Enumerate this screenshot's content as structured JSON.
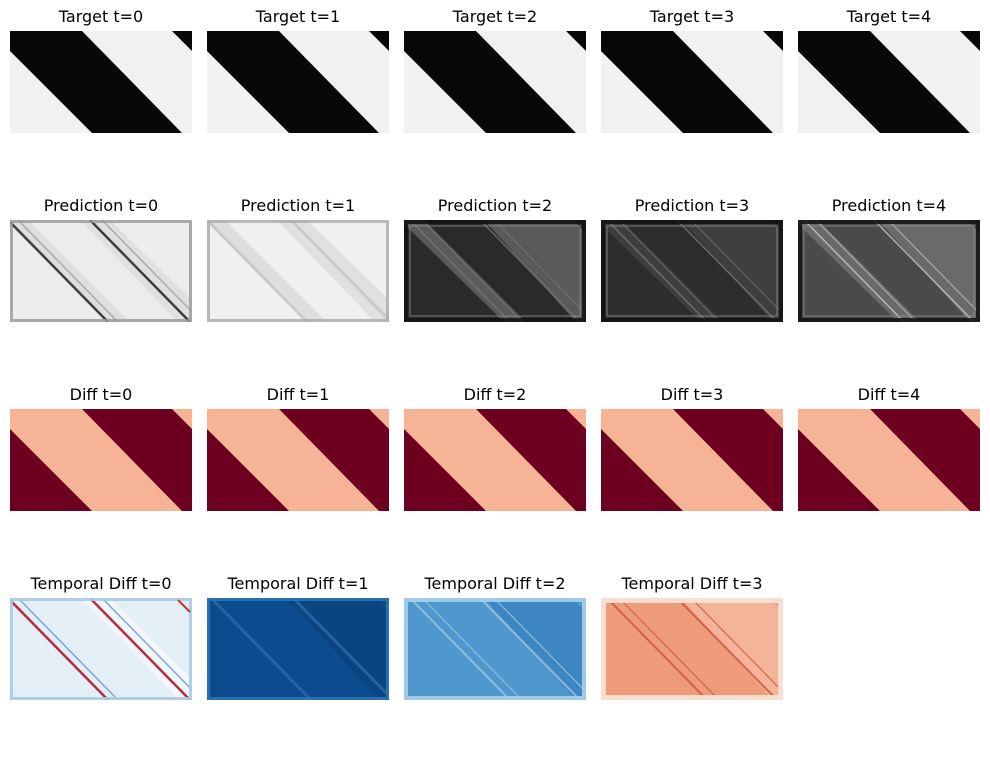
{
  "rows": [
    {
      "kind": "target",
      "panels": [
        {
          "title": "Target t=0",
          "t": 0
        },
        {
          "title": "Target t=1",
          "t": 1
        },
        {
          "title": "Target t=2",
          "t": 2
        },
        {
          "title": "Target t=3",
          "t": 3
        },
        {
          "title": "Target t=4",
          "t": 4
        }
      ]
    },
    {
      "kind": "prediction",
      "panels": [
        {
          "title": "Prediction t=0",
          "t": 0
        },
        {
          "title": "Prediction t=1",
          "t": 1
        },
        {
          "title": "Prediction t=2",
          "t": 2
        },
        {
          "title": "Prediction t=3",
          "t": 3
        },
        {
          "title": "Prediction t=4",
          "t": 4
        }
      ]
    },
    {
      "kind": "diff",
      "panels": [
        {
          "title": "Diff t=0",
          "t": 0
        },
        {
          "title": "Diff t=1",
          "t": 1
        },
        {
          "title": "Diff t=2",
          "t": 2
        },
        {
          "title": "Diff t=3",
          "t": 3
        },
        {
          "title": "Diff t=4",
          "t": 4
        }
      ]
    },
    {
      "kind": "temporal",
      "panels": [
        {
          "title": "Temporal Diff t=0",
          "t": 0
        },
        {
          "title": "Temporal Diff t=1",
          "t": 1
        },
        {
          "title": "Temporal Diff t=2",
          "t": 2
        },
        {
          "title": "Temporal Diff t=3",
          "t": 3
        }
      ]
    }
  ],
  "colors": {
    "target_dark": "#080808",
    "target_light": "#f1f1f1",
    "diff_light": "#f6b396",
    "diff_dark": "#6d0021"
  }
}
